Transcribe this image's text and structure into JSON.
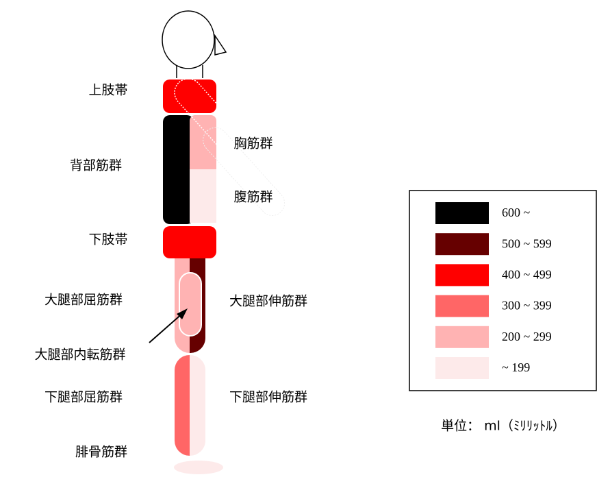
{
  "labels": {
    "shoulder": "上肢帯",
    "back": "背部筋群",
    "chest": "胸筋群",
    "abdomen": "腹筋群",
    "hip": "下肢帯",
    "thigh_flexor": "大腿部屈筋群",
    "thigh_extensor": "大腿部伸筋群",
    "thigh_adductor": "大腿部内転筋群",
    "leg_flexor": "下腿部屈筋群",
    "leg_extensor": "下腿部伸筋群",
    "fibular": "腓骨筋群"
  },
  "legend": {
    "items": [
      {
        "label": "600 ~",
        "color": "#000000"
      },
      {
        "label": "500 ~ 599",
        "color": "#660000"
      },
      {
        "label": "400 ~ 499",
        "color": "#ff0000"
      },
      {
        "label": "300 ~ 399",
        "color": "#ff6666"
      },
      {
        "label": "200 ~ 299",
        "color": "#ffb3b3"
      },
      {
        "label": " ~ 199",
        "color": "#fdeaea"
      }
    ]
  },
  "unit": "単位： ml（ﾐﾘﾘｯﾄﾙ）"
}
